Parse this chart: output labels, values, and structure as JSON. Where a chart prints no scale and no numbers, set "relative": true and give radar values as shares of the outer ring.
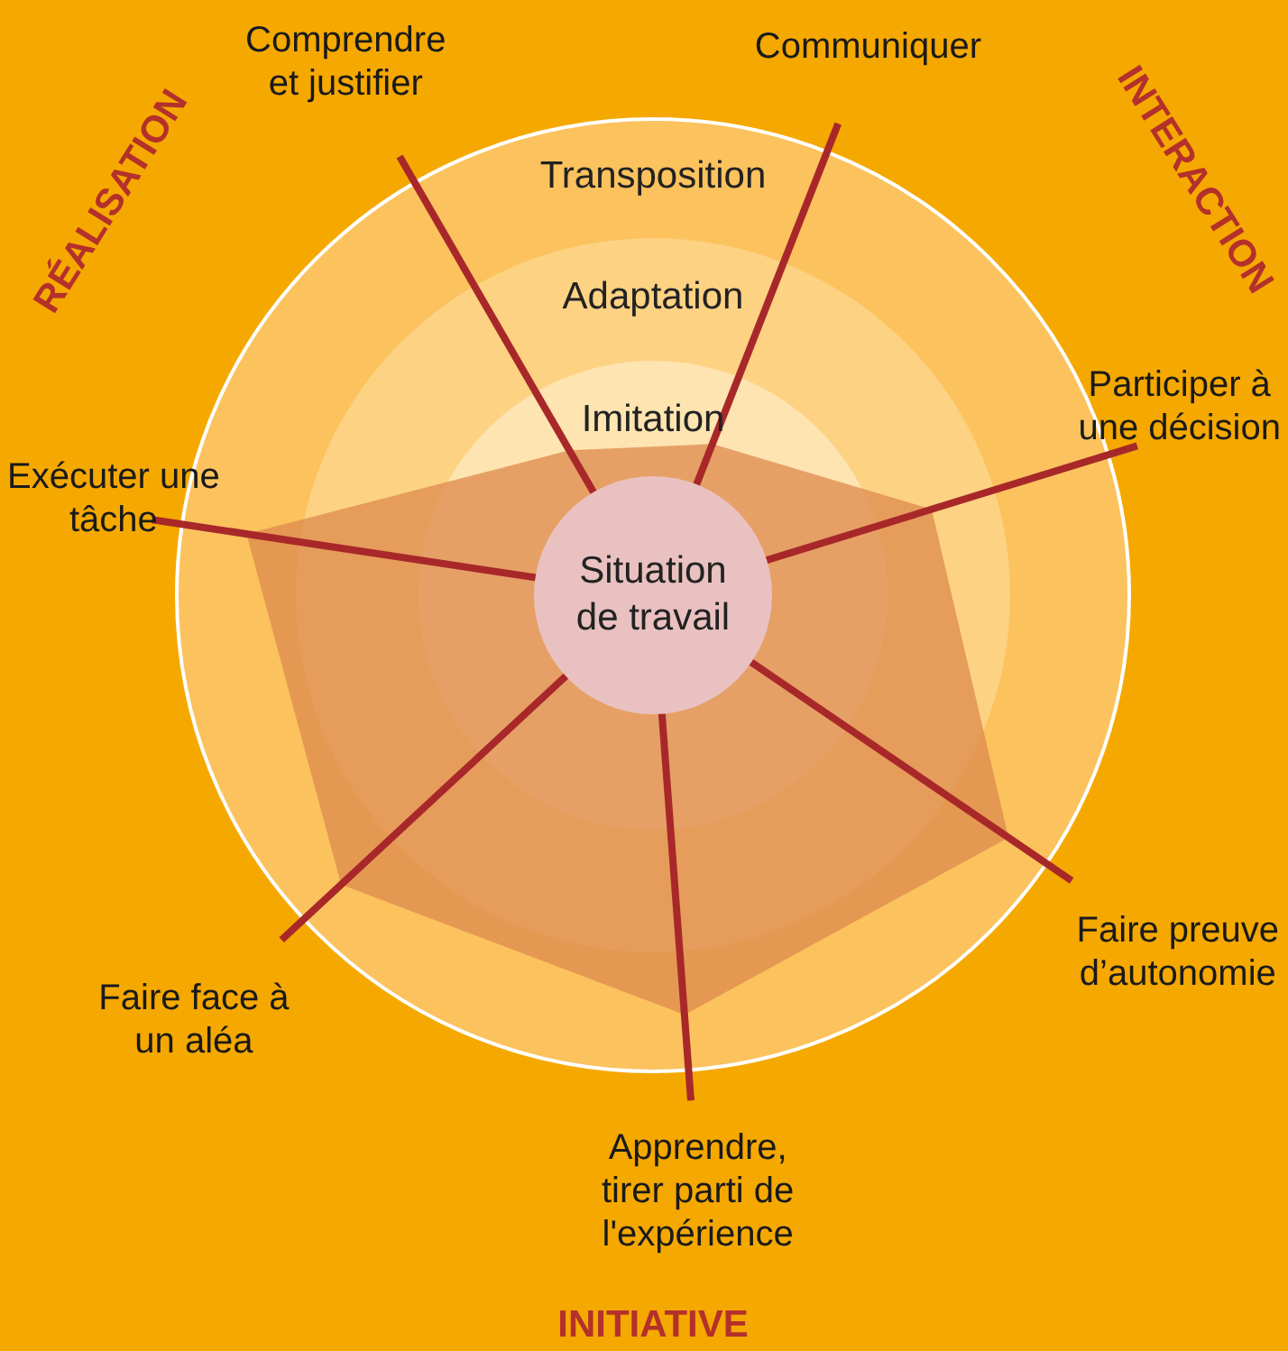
{
  "chart_data": {
    "type": "radar",
    "relative": true,
    "categories": [
      "Comprendre et justifier",
      "Communiquer",
      "Participer à une décision",
      "Faire preuve d’autonomie",
      "Apprendre, tirer parti de l'expérience",
      "Faire face à un aléa",
      "Exécuter une tâche"
    ],
    "series": [
      {
        "color": "#de8a4e",
        "values": [
          0.35,
          0.34,
          0.61,
          0.9,
          0.88,
          0.89,
          0.86
        ]
      }
    ],
    "marker": "none",
    "annotations": [
      "Transposition",
      "Adaptation",
      "Imitation",
      "Situation de travail",
      "RÉALISATION",
      "INTERACTION",
      "INITIATIVE"
    ]
  }
}
